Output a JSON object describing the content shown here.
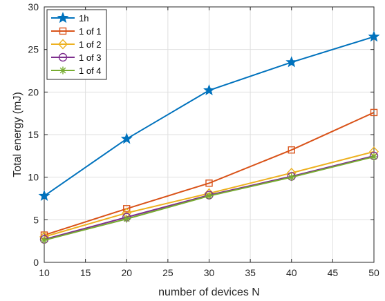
{
  "chart_data": {
    "type": "line",
    "xlabel": "number of devices N",
    "ylabel": "Total energy (mJ)",
    "xlim": [
      10,
      50
    ],
    "ylim": [
      0,
      30
    ],
    "xticks": [
      10,
      15,
      20,
      25,
      30,
      35,
      40,
      45,
      50
    ],
    "yticks": [
      0,
      5,
      10,
      15,
      20,
      25,
      30
    ],
    "grid": true,
    "legend_position": "top-left",
    "x": [
      10,
      20,
      30,
      40,
      50
    ],
    "series": [
      {
        "name": "1h",
        "values": [
          7.8,
          14.5,
          20.2,
          23.5,
          26.5
        ],
        "color": "#0072BD",
        "marker": "star"
      },
      {
        "name": "1 of 1",
        "values": [
          3.2,
          6.3,
          9.3,
          13.2,
          17.6
        ],
        "color": "#D95319",
        "marker": "square"
      },
      {
        "name": "1 of 2",
        "values": [
          3.0,
          5.8,
          8.1,
          10.5,
          13.0
        ],
        "color": "#EDB120",
        "marker": "diamond"
      },
      {
        "name": "1 of 3",
        "values": [
          2.7,
          5.3,
          7.9,
          10.1,
          12.5
        ],
        "color": "#7E2F8E",
        "marker": "circle"
      },
      {
        "name": "1 of 4",
        "values": [
          2.6,
          5.1,
          7.8,
          10.0,
          12.4
        ],
        "color": "#77AC30",
        "marker": "asterisk"
      }
    ]
  }
}
